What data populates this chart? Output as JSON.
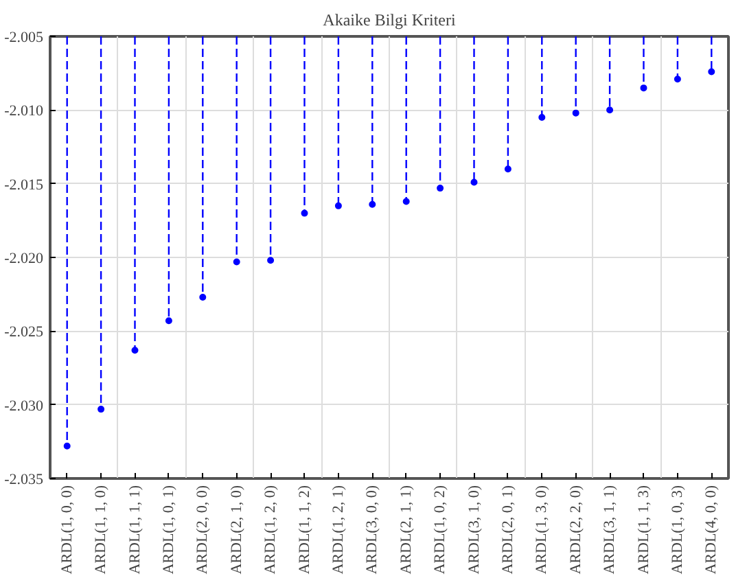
{
  "chart_data": {
    "type": "lollipop",
    "title": "Akaike Bilgi Kriteri",
    "categories": [
      "ARDL(1, 0, 0)",
      "ARDL(1, 1, 0)",
      "ARDL(1, 1, 1)",
      "ARDL(1, 0, 1)",
      "ARDL(2, 0, 0)",
      "ARDL(2, 1, 0)",
      "ARDL(1, 2, 0)",
      "ARDL(1, 1, 2)",
      "ARDL(1, 2, 1)",
      "ARDL(3, 0, 0)",
      "ARDL(2, 1, 1)",
      "ARDL(1, 0, 2)",
      "ARDL(3, 1, 0)",
      "ARDL(2, 0, 1)",
      "ARDL(1, 3, 0)",
      "ARDL(2, 2, 0)",
      "ARDL(3, 1, 1)",
      "ARDL(1, 1, 3)",
      "ARDL(1, 0, 3)",
      "ARDL(4, 0, 0)"
    ],
    "values": [
      -2.0328,
      -2.0303,
      -2.0263,
      -2.0243,
      -2.0227,
      -2.0203,
      -2.0202,
      -2.017,
      -2.0165,
      -2.0164,
      -2.0162,
      -2.0153,
      -2.0149,
      -2.014,
      -2.0105,
      -2.0102,
      -2.01,
      -2.0085,
      -2.0079,
      -2.0074
    ],
    "color": "#0000ff",
    "ylim": [
      -2.035,
      -2.005
    ],
    "yticks": [
      {
        "value": -2.035,
        "label": "-2.035"
      },
      {
        "value": -2.03,
        "label": "-2.030"
      },
      {
        "value": -2.025,
        "label": "-2.025"
      },
      {
        "value": -2.02,
        "label": "-2.020"
      },
      {
        "value": -2.015,
        "label": "-2.015"
      },
      {
        "value": -2.01,
        "label": "-2.010"
      },
      {
        "value": -2.005,
        "label": "-2.005"
      }
    ],
    "grid": true,
    "marker": "circle",
    "line_style": "dashed"
  }
}
